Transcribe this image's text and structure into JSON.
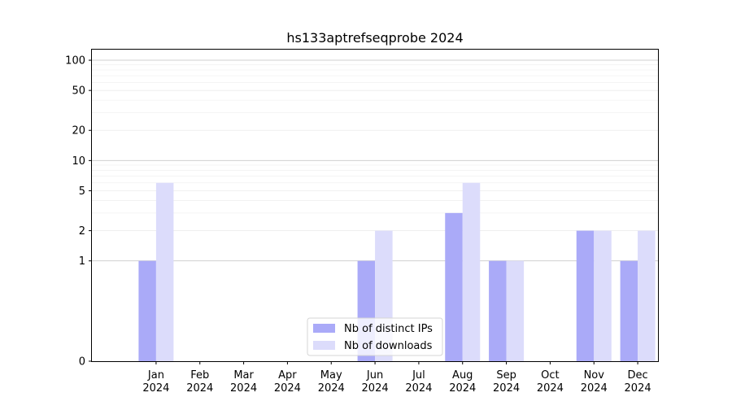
{
  "chart_data": {
    "type": "bar",
    "title": "hs133aptrefseqprobe 2024",
    "xlabel": "",
    "ylabel": "",
    "yscale": "symlog",
    "ylim": [
      0,
      130
    ],
    "yticks": [
      0,
      1,
      2,
      5,
      10,
      20,
      50,
      100
    ],
    "grid": "horizontal",
    "legend_position": "bottom-center",
    "categories": [
      [
        "Jan",
        "2024"
      ],
      [
        "Feb",
        "2024"
      ],
      [
        "Mar",
        "2024"
      ],
      [
        "Apr",
        "2024"
      ],
      [
        "May",
        "2024"
      ],
      [
        "Jun",
        "2024"
      ],
      [
        "Jul",
        "2024"
      ],
      [
        "Aug",
        "2024"
      ],
      [
        "Sep",
        "2024"
      ],
      [
        "Oct",
        "2024"
      ],
      [
        "Nov",
        "2024"
      ],
      [
        "Dec",
        "2024"
      ]
    ],
    "series": [
      {
        "name": "Nb of distinct IPs",
        "color": "#aaaaf8",
        "values": [
          1,
          0,
          0,
          0,
          0,
          1,
          0,
          3,
          1,
          0,
          2,
          1
        ]
      },
      {
        "name": "Nb of downloads",
        "color": "#dcdcfb",
        "values": [
          6,
          0,
          0,
          0,
          0,
          2,
          0,
          6,
          1,
          0,
          2,
          2
        ]
      }
    ]
  }
}
